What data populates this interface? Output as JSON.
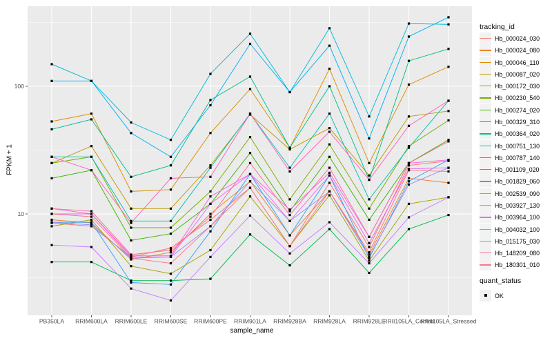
{
  "chart_data": {
    "type": "line",
    "title": "",
    "xlabel": "sample_name",
    "ylabel": "FPKM + 1",
    "y_scale": "log10",
    "y_ticks": [
      10,
      100
    ],
    "y_minor_ticks": [
      3.162,
      31.62,
      316.2
    ],
    "ylim": [
      1.6,
      430
    ],
    "grid": "white-on-gray",
    "panel_bg": "#EBEBEB",
    "point_marker": "black-filled-square",
    "categories": [
      "PB350LA",
      "RRIM600LA",
      "RRIM600LE",
      "RRIM600SE",
      "RRIM600PE",
      "RRIM901LA",
      "RRIM928BA",
      "RRIM928LA",
      "RRIM928LE",
      "RRII105LA_Control",
      "RRII105LA_Stressed"
    ],
    "series": [
      {
        "name": "Hb_000024_030",
        "color": "#F8766D",
        "values": [
          8.5,
          8.0,
          4.6,
          5.4,
          9.0,
          16,
          5.6,
          17.5,
          5.5,
          24,
          26
        ]
      },
      {
        "name": "Hb_000024_080",
        "color": "#EA8331",
        "values": [
          9.0,
          8.5,
          4.4,
          5.0,
          10,
          18,
          6.8,
          15,
          4.8,
          19,
          17.5
        ]
      },
      {
        "name": "Hb_000046_110",
        "color": "#D89000",
        "values": [
          53,
          61,
          15,
          15.5,
          43,
          95,
          33,
          137,
          25,
          103,
          142
        ]
      },
      {
        "name": "Hb_000087_020",
        "color": "#C09B00",
        "values": [
          25,
          34,
          11,
          11,
          24,
          60,
          32,
          47,
          20,
          58,
          64
        ]
      },
      {
        "name": "Hb_000172_030",
        "color": "#A3A500",
        "values": [
          8.0,
          9.0,
          3.9,
          3.4,
          5.2,
          13.7,
          5.6,
          14,
          4.3,
          12,
          13.5
        ]
      },
      {
        "name": "Hb_000230_540",
        "color": "#7CAE00",
        "values": [
          25,
          28,
          7.8,
          7.8,
          15,
          40,
          13,
          35,
          11,
          34,
          54
        ]
      },
      {
        "name": "Hb_000274_020",
        "color": "#39B600",
        "values": [
          19,
          22,
          6.2,
          7.0,
          12,
          30,
          10.5,
          28,
          9.0,
          25,
          38
        ]
      },
      {
        "name": "Hb_000329_310",
        "color": "#00BB4E",
        "values": [
          4.2,
          4.2,
          3.0,
          3.0,
          3.1,
          6.9,
          3.95,
          7.6,
          3.45,
          7.6,
          9.8
        ]
      },
      {
        "name": "Hb_000364_020",
        "color": "#00C087",
        "values": [
          46,
          55,
          19.5,
          24,
          78,
          119,
          33,
          100,
          18.5,
          158,
          196
        ]
      },
      {
        "name": "Hb_000751_130",
        "color": "#00C0AF",
        "values": [
          28,
          28,
          8.8,
          8.8,
          23,
          61,
          23,
          61,
          13,
          33,
          77
        ]
      },
      {
        "name": "Hb_000787_140",
        "color": "#00BCD8",
        "values": [
          149,
          110,
          52,
          38,
          125,
          258,
          90,
          285,
          58,
          310,
          305
        ]
      },
      {
        "name": "Hb_001109_020",
        "color": "#00B0F6",
        "values": [
          110,
          110,
          43,
          28,
          71,
          215,
          90,
          208,
          39,
          245,
          347
        ]
      },
      {
        "name": "Hb_001829_060",
        "color": "#35A2FF",
        "values": [
          8.6,
          8.6,
          2.9,
          2.8,
          7.3,
          20.5,
          6.8,
          20,
          4.5,
          18,
          26.5
        ]
      },
      {
        "name": "Hb_002539_090",
        "color": "#9590FF",
        "values": [
          8.6,
          8.2,
          4.5,
          4.6,
          8.0,
          18,
          8.8,
          15,
          4.6,
          17,
          23
        ]
      },
      {
        "name": "Hb_003927_130",
        "color": "#C77CFF",
        "values": [
          5.7,
          5.5,
          2.6,
          2.1,
          4.6,
          9.7,
          4.9,
          8.6,
          4.1,
          9.4,
          13.5
        ]
      },
      {
        "name": "Hb_003964_100",
        "color": "#E76BF3",
        "values": [
          10,
          10,
          4.6,
          4.6,
          12,
          20.5,
          8.8,
          20,
          5.9,
          22.5,
          23
        ]
      },
      {
        "name": "Hb_004032_100",
        "color": "#FA62DB",
        "values": [
          11,
          10,
          4.7,
          4.7,
          13.7,
          20.5,
          10.8,
          21,
          6.6,
          25,
          26.5
        ]
      },
      {
        "name": "Hb_015175_030",
        "color": "#FF62BC",
        "values": [
          28,
          22,
          8.5,
          19,
          19.5,
          61,
          21.5,
          44,
          18.5,
          49,
          77
        ]
      },
      {
        "name": "Hb_148209_080",
        "color": "#FF6A98",
        "values": [
          11,
          10.5,
          4.8,
          5.2,
          9.5,
          25,
          9.8,
          23,
          6.6,
          25,
          37
        ]
      },
      {
        "name": "Hb_180301_010",
        "color": "#FE7687",
        "values": [
          10,
          9.5,
          4.5,
          4.1,
          8.0,
          16,
          5.6,
          15,
          5.0,
          22,
          21.5
        ]
      }
    ],
    "legend_position": "right"
  },
  "axes": {
    "x": {
      "title": "sample_name"
    },
    "y": {
      "title": "FPKM + 1",
      "tick_labels": [
        "100",
        "10"
      ]
    }
  },
  "legend": {
    "tracking_title": "tracking_id",
    "quant_title": "quant_status",
    "quant_entries": [
      {
        "label": "OK",
        "marker": "black-square"
      }
    ]
  }
}
